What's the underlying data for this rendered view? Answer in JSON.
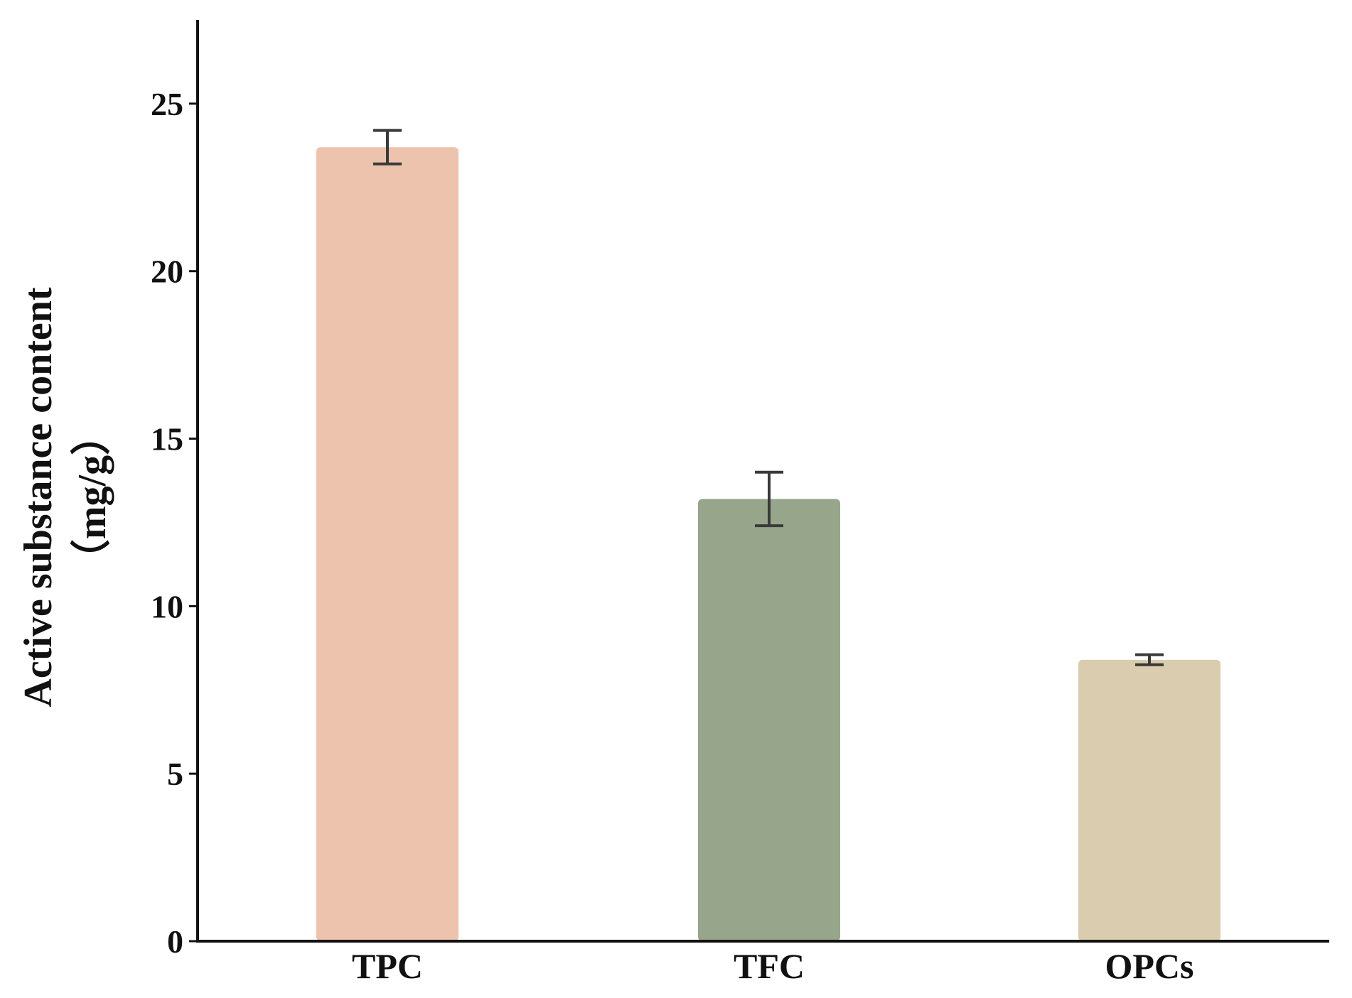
{
  "chart_data": {
    "type": "bar",
    "title": "",
    "xlabel": "",
    "ylabel": "Active substance content",
    "ylabel_unit": "（mg/g）",
    "categories": [
      "TPC",
      "TFC",
      "OPCs"
    ],
    "values": [
      23.7,
      13.2,
      8.4
    ],
    "errors": [
      0.5,
      0.8,
      0.15
    ],
    "colors": [
      "#EDC3AD",
      "#97A68B",
      "#D9CCAF"
    ],
    "error_bar_color": "#3a3a3a",
    "ylim": [
      0,
      27.5
    ],
    "yticks": [
      0,
      5,
      10,
      15,
      20,
      25
    ],
    "grid": false,
    "legend": "none"
  }
}
